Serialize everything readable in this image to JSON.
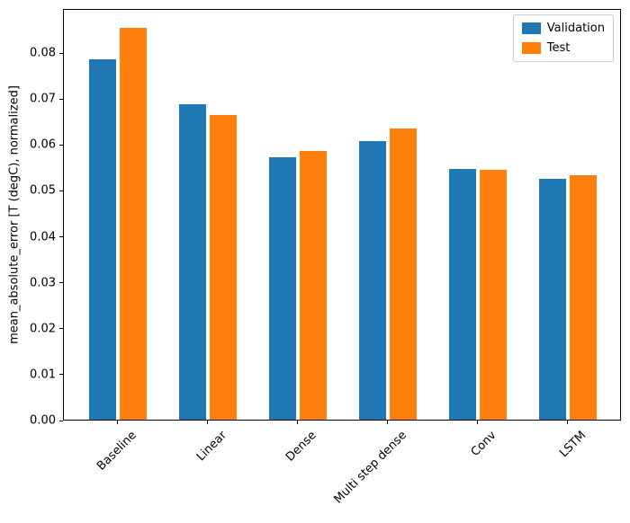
{
  "chart_data": {
    "type": "bar",
    "title": "",
    "categories": [
      "Baseline",
      "Linear",
      "Dense",
      "Multi step dense",
      "Conv",
      "LSTM"
    ],
    "series": [
      {
        "name": "Validation",
        "color": "#1f77b4",
        "values": [
          0.0785,
          0.0687,
          0.0572,
          0.0607,
          0.0545,
          0.0524
        ]
      },
      {
        "name": "Test",
        "color": "#ff7f0e",
        "values": [
          0.0853,
          0.0663,
          0.0584,
          0.0634,
          0.0543,
          0.0533
        ]
      }
    ],
    "xlabel": "",
    "ylabel": "mean_absolute_error [T (degC), normalized]",
    "ylim": [
      0,
      0.0896
    ],
    "xlim": [
      -0.6,
      5.6
    ],
    "yticks": [
      0,
      0.01,
      0.02,
      0.03,
      0.04,
      0.05,
      0.06,
      0.07,
      0.08
    ],
    "ytick_labels": [
      "0.00",
      "0.01",
      "0.02",
      "0.03",
      "0.04",
      "0.05",
      "0.06",
      "0.07",
      "0.08"
    ],
    "bar_width": 0.3,
    "bar_offset": 0.17,
    "grid": false,
    "legend": {
      "position": "upper right",
      "entries": [
        "Validation",
        "Test"
      ]
    },
    "colors": {
      "validation": "#1f77b4",
      "test": "#ff7f0e",
      "axis": "#000000",
      "legend_border": "#cccccc"
    }
  }
}
